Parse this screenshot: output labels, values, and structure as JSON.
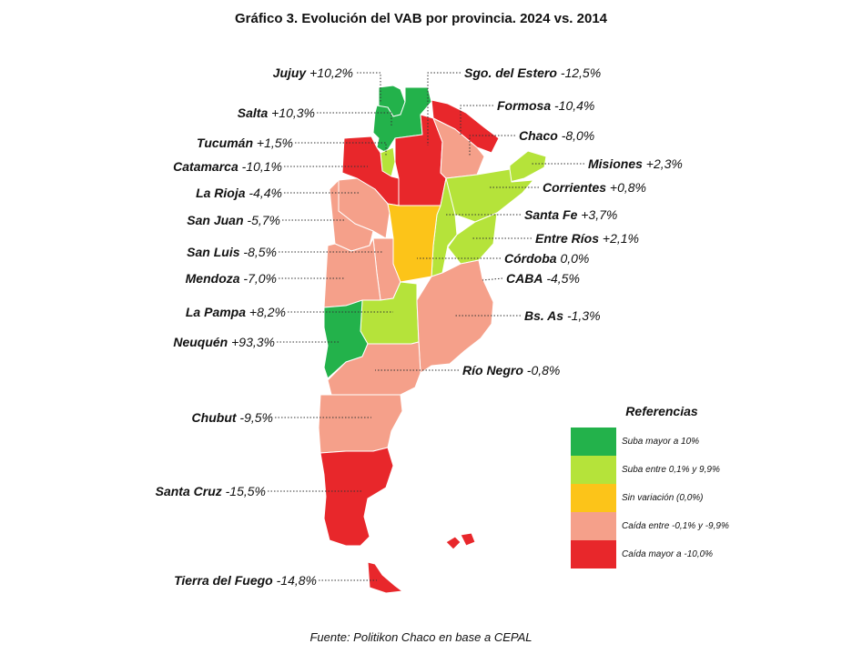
{
  "title": "Gráfico 3. Evolución del VAB por provincia. 2024 vs. 2014",
  "source": "Fuente: Politikon Chaco en base a CEPAL",
  "legend": {
    "title": "Referencias",
    "items": [
      {
        "label": "Suba mayor a 10%",
        "color": "#23b24b"
      },
      {
        "label": "Suba entre 0,1% y 9,9%",
        "color": "#b5e33a"
      },
      {
        "label": "Sin variación (0,0%)",
        "color": "#fcc419"
      },
      {
        "label": "Caída entre -0,1% y -9,9%",
        "color": "#f5a08a"
      },
      {
        "label": "Caída mayor a -10,0%",
        "color": "#e8272b"
      }
    ]
  },
  "provinces": [
    {
      "name": "Jujuy",
      "value": "+10,2%",
      "category": 0
    },
    {
      "name": "Salta",
      "value": "+10,3%",
      "category": 0
    },
    {
      "name": "Tucumán",
      "value": "+1,5%",
      "category": 1
    },
    {
      "name": "Catamarca",
      "value": "-10,1%",
      "category": 4
    },
    {
      "name": "La Rioja",
      "value": "-4,4%",
      "category": 3
    },
    {
      "name": "San Juan",
      "value": "-5,7%",
      "category": 3
    },
    {
      "name": "San Luis",
      "value": "-8,5%",
      "category": 3
    },
    {
      "name": "Mendoza",
      "value": "-7,0%",
      "category": 3
    },
    {
      "name": "La Pampa",
      "value": "+8,2%",
      "category": 1
    },
    {
      "name": "Neuquén",
      "value": "+93,3%",
      "category": 0
    },
    {
      "name": "Chubut",
      "value": "-9,5%",
      "category": 3
    },
    {
      "name": "Santa Cruz",
      "value": "-15,5%",
      "category": 4
    },
    {
      "name": "Tierra del Fuego",
      "value": "-14,8%",
      "category": 4
    },
    {
      "name": "Sgo. del Estero",
      "value": "-12,5%",
      "category": 4
    },
    {
      "name": "Formosa",
      "value": "-10,4%",
      "category": 4
    },
    {
      "name": "Chaco",
      "value": "-8,0%",
      "category": 3
    },
    {
      "name": "Misiones",
      "value": "+2,3%",
      "category": 1
    },
    {
      "name": "Corrientes",
      "value": "+0,8%",
      "category": 1
    },
    {
      "name": "Santa Fe",
      "value": "+3,7%",
      "category": 1
    },
    {
      "name": "Entre Ríos",
      "value": "+2,1%",
      "category": 1
    },
    {
      "name": "Córdoba",
      "value": "0,0%",
      "category": 2
    },
    {
      "name": "CABA",
      "value": "-4,5%",
      "category": 3
    },
    {
      "name": "Bs. As",
      "value": "-1,3%",
      "category": 3
    },
    {
      "name": "Río Negro",
      "value": "-0,8%",
      "category": 3
    }
  ]
}
